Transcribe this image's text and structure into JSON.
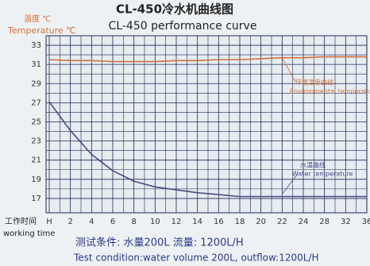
{
  "chart_data": {
    "type": "line",
    "title": "CL-450冷水机曲线图",
    "subtitle": "CL-450 performance curve",
    "y_label_cn": "温度 ℃",
    "y_label": "Temperature ℃",
    "x_label_cn": "工作时间",
    "x_label": "working time",
    "categories": [
      "H",
      "2",
      "4",
      "6",
      "8",
      "10",
      "12",
      "14",
      "16",
      "18",
      "20",
      "22",
      "24",
      "28",
      "32",
      "36"
    ],
    "series": [
      {
        "name": "环境温度曲线",
        "name_en": "Environmental temperature",
        "color": "#d0703c",
        "values": [
          31.5,
          31.4,
          31.4,
          31.3,
          31.3,
          31.3,
          31.4,
          31.4,
          31.5,
          31.5,
          31.6,
          31.7,
          31.7,
          31.8,
          31.8,
          31.8
        ]
      },
      {
        "name": "水温曲线",
        "name_en": "Water temperature",
        "color": "#4a4a86",
        "values": [
          27.1,
          24.1,
          21.6,
          19.9,
          18.8,
          18.2,
          17.9,
          17.6,
          17.4,
          17.2,
          17.2,
          17.2,
          17.2,
          17.2,
          17.2,
          17.2
        ]
      }
    ],
    "ylim": [
      15.5,
      34
    ],
    "yticks": [
      17,
      19,
      21,
      23,
      25,
      27,
      29,
      31,
      33
    ],
    "grid": true,
    "test_condition_cn": "测试条件: 水量200L  流量: 1200L/H",
    "test_condition": "Test condition:water volume 200L, outflow:1200L/H"
  }
}
